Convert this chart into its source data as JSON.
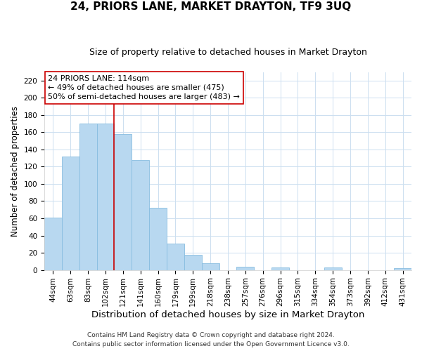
{
  "title": "24, PRIORS LANE, MARKET DRAYTON, TF9 3UQ",
  "subtitle": "Size of property relative to detached houses in Market Drayton",
  "xlabel": "Distribution of detached houses by size in Market Drayton",
  "ylabel": "Number of detached properties",
  "bar_labels": [
    "44sqm",
    "63sqm",
    "83sqm",
    "102sqm",
    "121sqm",
    "141sqm",
    "160sqm",
    "179sqm",
    "199sqm",
    "218sqm",
    "238sqm",
    "257sqm",
    "276sqm",
    "296sqm",
    "315sqm",
    "334sqm",
    "354sqm",
    "373sqm",
    "392sqm",
    "412sqm",
    "431sqm"
  ],
  "bar_values": [
    61,
    132,
    170,
    170,
    158,
    128,
    72,
    31,
    18,
    8,
    0,
    4,
    0,
    3,
    0,
    0,
    3,
    0,
    0,
    0,
    2
  ],
  "bar_color": "#b8d8f0",
  "bar_edge_color": "#88bde0",
  "vline_color": "#cc0000",
  "vline_index": 3.5,
  "annotation_text": "24 PRIORS LANE: 114sqm\n← 49% of detached houses are smaller (475)\n50% of semi-detached houses are larger (483) →",
  "annotation_box_edgecolor": "#cc0000",
  "annotation_box_facecolor": "#ffffff",
  "ylim": [
    0,
    230
  ],
  "yticks": [
    0,
    20,
    40,
    60,
    80,
    100,
    120,
    140,
    160,
    180,
    200,
    220
  ],
  "footer_line1": "Contains HM Land Registry data © Crown copyright and database right 2024.",
  "footer_line2": "Contains public sector information licensed under the Open Government Licence v3.0.",
  "title_fontsize": 11,
  "subtitle_fontsize": 9,
  "xlabel_fontsize": 9.5,
  "ylabel_fontsize": 8.5,
  "tick_fontsize": 7.5,
  "footer_fontsize": 6.5,
  "annotation_fontsize": 8,
  "background_color": "#ffffff",
  "grid_color": "#ccdff0"
}
